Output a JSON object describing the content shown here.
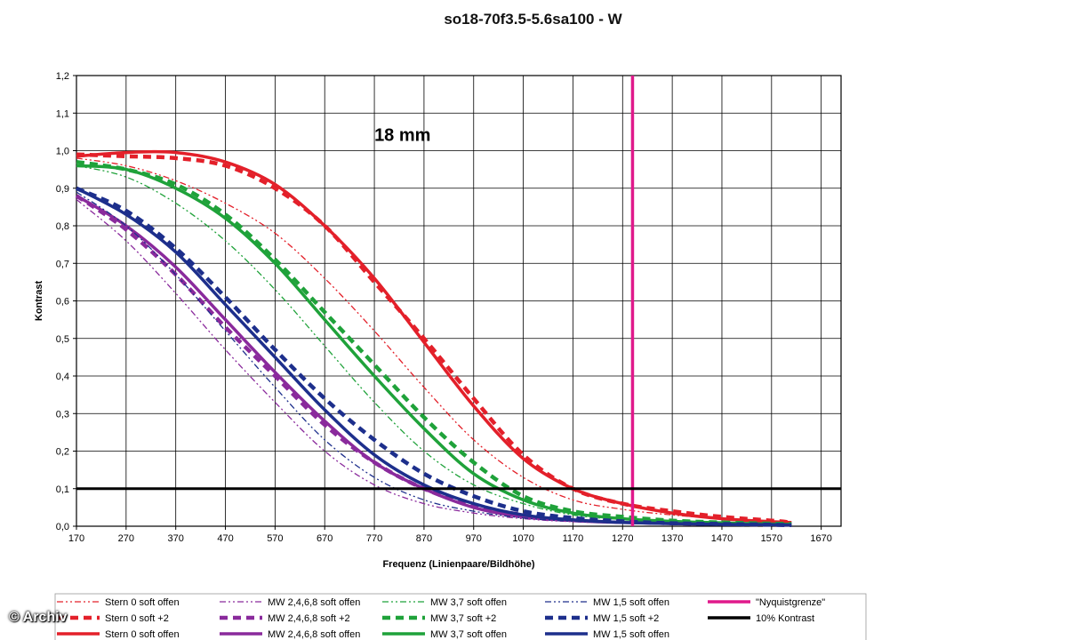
{
  "chart_data": {
    "type": "line",
    "title": "so18-70f3.5-5.6sa100 - W",
    "annotation": "18 mm",
    "xlabel": "Frequenz (Linienpaare/Bildhöhe)",
    "ylabel": "Kontrast",
    "xlim": [
      170,
      1710
    ],
    "ylim": [
      0,
      1.2
    ],
    "x_ticks": [
      "170",
      "270",
      "370",
      "470",
      "570",
      "670",
      "770",
      "870",
      "970",
      "1070",
      "1170",
      "1270",
      "1370",
      "1470",
      "1570",
      "1670"
    ],
    "y_ticks": [
      "0,0",
      "0,1",
      "0,2",
      "0,3",
      "0,4",
      "0,5",
      "0,6",
      "0,7",
      "0,8",
      "0,9",
      "1,0",
      "1,1",
      "1,2"
    ],
    "grid": true,
    "legend_position": "bottom",
    "colors": {
      "red": "#e3202a",
      "purple": "#8a2a9c",
      "green": "#1fa23a",
      "blue": "#1d2f8c",
      "magenta": "#e0198b",
      "black": "#000000"
    },
    "series": [
      {
        "name": "Stern 0 soft offen",
        "style": "dashdotdot",
        "color": "red",
        "x": [
          170,
          270,
          370,
          470,
          570,
          670,
          770,
          870,
          970,
          1070,
          1170,
          1270,
          1370,
          1470,
          1570,
          1610
        ],
        "y": [
          0.98,
          0.96,
          0.92,
          0.86,
          0.78,
          0.66,
          0.52,
          0.37,
          0.23,
          0.13,
          0.07,
          0.045,
          0.03,
          0.02,
          0.012,
          0.01
        ]
      },
      {
        "name": "Stern 0 soft +2",
        "style": "dashed",
        "color": "red",
        "x": [
          170,
          270,
          370,
          470,
          570,
          670,
          770,
          870,
          970,
          1070,
          1170,
          1270,
          1370,
          1470,
          1570,
          1610
        ],
        "y": [
          0.99,
          0.985,
          0.98,
          0.96,
          0.9,
          0.8,
          0.65,
          0.5,
          0.34,
          0.19,
          0.1,
          0.06,
          0.04,
          0.025,
          0.015,
          0.01
        ]
      },
      {
        "name": "Stern 0 soft offen",
        "style": "solid",
        "color": "red",
        "x": [
          170,
          270,
          370,
          470,
          570,
          670,
          770,
          870,
          970,
          1070,
          1170,
          1270,
          1370,
          1470,
          1570,
          1610
        ],
        "y": [
          0.985,
          0.995,
          0.995,
          0.97,
          0.91,
          0.8,
          0.66,
          0.49,
          0.32,
          0.18,
          0.1,
          0.06,
          0.035,
          0.02,
          0.012,
          0.01
        ]
      },
      {
        "name": "MW 2,4,6,8 soft offen",
        "style": "dashdotdot",
        "color": "purple",
        "x": [
          170,
          270,
          370,
          470,
          570,
          670,
          770,
          870,
          970,
          1070,
          1170,
          1270,
          1370,
          1470,
          1570,
          1610
        ],
        "y": [
          0.87,
          0.76,
          0.62,
          0.47,
          0.33,
          0.2,
          0.11,
          0.06,
          0.035,
          0.02,
          0.012,
          0.008,
          0.005,
          0.004,
          0.003,
          0.003
        ]
      },
      {
        "name": "MW 2,4,6,8 soft +2",
        "style": "dashed",
        "color": "purple",
        "x": [
          170,
          270,
          370,
          470,
          570,
          670,
          770,
          870,
          970,
          1070,
          1170,
          1270,
          1370,
          1470,
          1570,
          1610
        ],
        "y": [
          0.88,
          0.79,
          0.67,
          0.53,
          0.4,
          0.27,
          0.17,
          0.1,
          0.055,
          0.03,
          0.018,
          0.012,
          0.008,
          0.006,
          0.004,
          0.003
        ]
      },
      {
        "name": "MW 2,4,6,8 soft offen",
        "style": "solid",
        "color": "purple",
        "x": [
          170,
          270,
          370,
          470,
          570,
          670,
          770,
          870,
          970,
          1070,
          1170,
          1270,
          1370,
          1470,
          1570,
          1610
        ],
        "y": [
          0.88,
          0.8,
          0.69,
          0.55,
          0.41,
          0.28,
          0.17,
          0.1,
          0.05,
          0.025,
          0.015,
          0.01,
          0.007,
          0.005,
          0.004,
          0.003
        ]
      },
      {
        "name": "MW 3,7 soft offen",
        "style": "dashdotdot",
        "color": "green",
        "x": [
          170,
          270,
          370,
          470,
          570,
          670,
          770,
          870,
          970,
          1070,
          1170,
          1270,
          1370,
          1470,
          1570,
          1610
        ],
        "y": [
          0.96,
          0.93,
          0.86,
          0.76,
          0.63,
          0.48,
          0.33,
          0.2,
          0.11,
          0.06,
          0.03,
          0.018,
          0.012,
          0.008,
          0.005,
          0.005
        ]
      },
      {
        "name": "MW 3,7 soft +2",
        "style": "dashed",
        "color": "green",
        "x": [
          170,
          270,
          370,
          470,
          570,
          670,
          770,
          870,
          970,
          1070,
          1170,
          1270,
          1370,
          1470,
          1570,
          1610
        ],
        "y": [
          0.97,
          0.95,
          0.91,
          0.83,
          0.71,
          0.57,
          0.43,
          0.29,
          0.17,
          0.08,
          0.04,
          0.025,
          0.015,
          0.01,
          0.007,
          0.006
        ]
      },
      {
        "name": "MW 3,7 soft offen",
        "style": "solid",
        "color": "green",
        "x": [
          170,
          270,
          370,
          470,
          570,
          670,
          770,
          870,
          970,
          1070,
          1170,
          1270,
          1370,
          1470,
          1570,
          1610
        ],
        "y": [
          0.96,
          0.95,
          0.9,
          0.82,
          0.7,
          0.55,
          0.4,
          0.26,
          0.14,
          0.07,
          0.035,
          0.02,
          0.013,
          0.009,
          0.006,
          0.005
        ]
      },
      {
        "name": "MW 1,5 soft offen",
        "style": "dashdotdot",
        "color": "blue",
        "x": [
          170,
          270,
          370,
          470,
          570,
          670,
          770,
          870,
          970,
          1070,
          1170,
          1270,
          1370,
          1470,
          1570,
          1610
        ],
        "y": [
          0.89,
          0.8,
          0.67,
          0.52,
          0.37,
          0.23,
          0.13,
          0.07,
          0.04,
          0.022,
          0.013,
          0.008,
          0.006,
          0.004,
          0.003,
          0.003
        ]
      },
      {
        "name": "MW 1,5 soft +2",
        "style": "dashed",
        "color": "blue",
        "x": [
          170,
          270,
          370,
          470,
          570,
          670,
          770,
          870,
          970,
          1070,
          1170,
          1270,
          1370,
          1470,
          1570,
          1610
        ],
        "y": [
          0.9,
          0.84,
          0.74,
          0.61,
          0.47,
          0.34,
          0.23,
          0.14,
          0.08,
          0.04,
          0.022,
          0.013,
          0.008,
          0.006,
          0.004,
          0.003
        ]
      },
      {
        "name": "MW 1,5 soft offen",
        "style": "solid",
        "color": "blue",
        "x": [
          170,
          270,
          370,
          470,
          570,
          670,
          770,
          870,
          970,
          1070,
          1170,
          1270,
          1370,
          1470,
          1570,
          1610
        ],
        "y": [
          0.9,
          0.83,
          0.73,
          0.59,
          0.45,
          0.31,
          0.19,
          0.11,
          0.06,
          0.03,
          0.017,
          0.01,
          0.007,
          0.005,
          0.004,
          0.003
        ]
      },
      {
        "name": "\"Nyquistgrenze\"",
        "style": "vertical",
        "color": "magenta",
        "x_value": 1290
      },
      {
        "name": "10% Kontrast",
        "style": "horizontal",
        "color": "black",
        "y_value": 0.1
      }
    ]
  },
  "credit": "© Archiv"
}
